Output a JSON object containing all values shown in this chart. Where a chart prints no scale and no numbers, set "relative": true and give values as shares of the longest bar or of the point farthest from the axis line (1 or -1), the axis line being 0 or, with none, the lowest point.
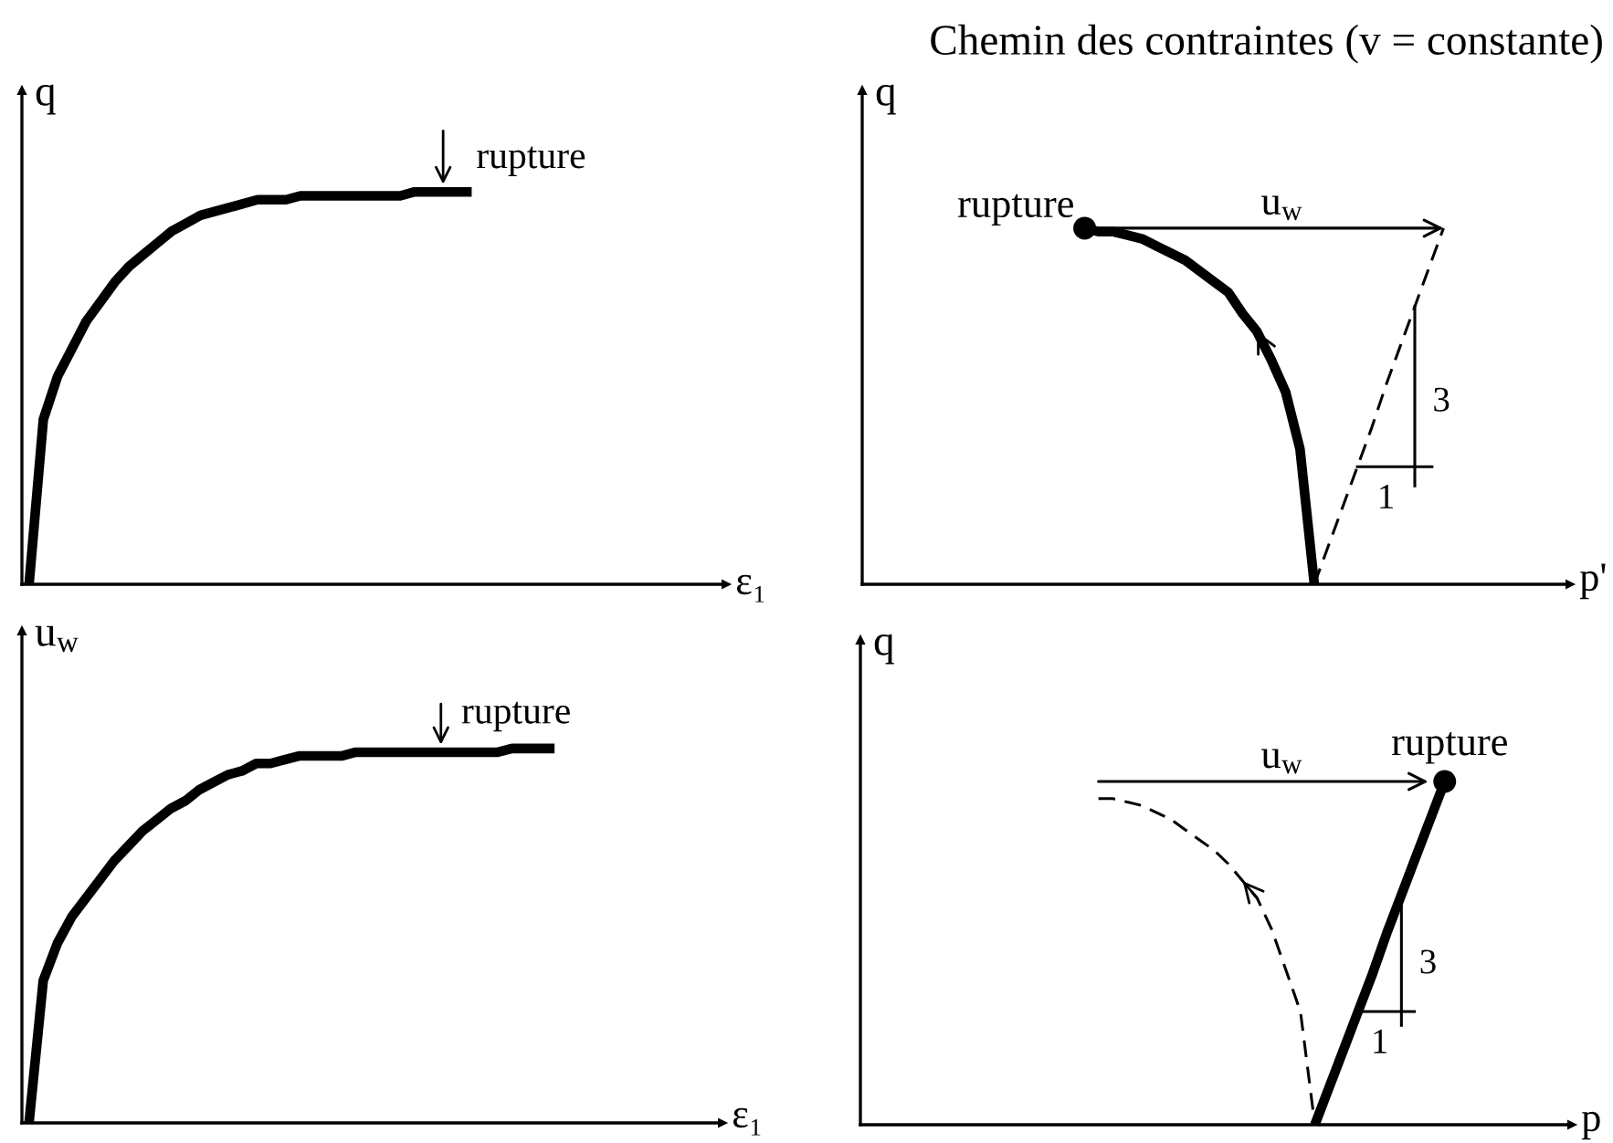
{
  "chart_data": [
    {
      "type": "line",
      "relative": true,
      "xlabel": "ε₁",
      "ylabel": "q",
      "categories": [
        null,
        null,
        null,
        null,
        null,
        null,
        null,
        null,
        null,
        null,
        null,
        null,
        null,
        null,
        null,
        null,
        null,
        null,
        null,
        null,
        null,
        null,
        null,
        null,
        null,
        null,
        null,
        null,
        null,
        null,
        null,
        null,
        null,
        null,
        null,
        null,
        null,
        null,
        null,
        null,
        null,
        null,
        null,
        null,
        null,
        null,
        null,
        null,
        null
      ],
      "series": [
        {
          "color": "#000000",
          "values": [
            0,
            0.42,
            0.53,
            0.6,
            0.67,
            0.72,
            0.77,
            0.81,
            0.84,
            0.87,
            0.9,
            0.92,
            0.94,
            0.95,
            0.96,
            0.97,
            0.98,
            0.98,
            0.98,
            0.99,
            0.99,
            0.99,
            0.99,
            0.99,
            0.99,
            0.99,
            0.99,
            1,
            1,
            1,
            1,
            1,
            null,
            null,
            null,
            null,
            null,
            null,
            null,
            null,
            null,
            null,
            null,
            null,
            null,
            null,
            null,
            null,
            null
          ]
        }
      ],
      "annotations": [
        "rupture"
      ]
    },
    {
      "type": "line",
      "relative": true,
      "title": "Chemin des contraintes (v = constante)",
      "xlabel": "p'",
      "ylabel": "q",
      "categories": [
        null,
        null,
        null,
        null,
        null,
        null,
        null,
        null,
        null,
        null,
        null,
        null,
        null,
        null,
        null,
        null,
        null,
        null,
        null,
        null,
        null,
        null,
        null,
        null,
        null,
        null,
        null,
        null,
        null,
        null,
        null,
        null,
        null,
        null,
        null,
        null,
        null,
        null,
        null,
        null,
        null,
        null,
        null,
        null,
        null,
        null,
        null,
        null,
        null
      ],
      "series": [
        {
          "color": "#000000",
          "values": [
            null,
            null,
            null,
            null,
            null,
            null,
            null,
            null,
            null,
            null,
            null,
            null,
            null,
            null,
            null,
            1,
            0.99,
            0.99,
            0.98,
            0.97,
            0.95,
            0.93,
            0.91,
            0.88,
            0.85,
            0.82,
            0.76,
            0.71,
            0.63,
            0.54,
            0.38,
            0,
            null,
            null,
            null,
            null,
            null,
            null,
            null,
            null,
            null,
            null,
            null,
            null,
            null,
            null,
            null,
            null,
            null
          ]
        },
        {
          "color": "#000000",
          "line_style": "dashed",
          "values": [
            null,
            null,
            null,
            null,
            null,
            null,
            null,
            null,
            null,
            null,
            null,
            null,
            null,
            null,
            null,
            null,
            null,
            null,
            null,
            null,
            null,
            null,
            null,
            null,
            null,
            null,
            null,
            null,
            null,
            null,
            null,
            0,
            0.11,
            0.22,
            0.33,
            0.44,
            0.56,
            0.67,
            0.78,
            0.89,
            1,
            null,
            null,
            null,
            null,
            null,
            null,
            null,
            null
          ]
        },
        {
          "name": "rupture",
          "marker": "circle",
          "color": "#000000",
          "values": [
            null,
            null,
            null,
            null,
            null,
            null,
            null,
            null,
            null,
            null,
            null,
            null,
            null,
            null,
            null,
            1,
            null,
            null,
            null,
            null,
            null,
            null,
            null,
            null,
            null,
            null,
            null,
            null,
            null,
            null,
            null,
            null,
            null,
            null,
            null,
            null,
            null,
            null,
            null,
            null,
            null,
            null,
            null,
            null,
            null,
            null,
            null,
            null,
            null
          ]
        }
      ],
      "annotations": [
        "u$_{w}$",
        "3",
        "1"
      ]
    },
    {
      "type": "line",
      "relative": true,
      "xlabel": "ε₁",
      "ylabel": "u$_{w}$",
      "categories": [
        null,
        null,
        null,
        null,
        null,
        null,
        null,
        null,
        null,
        null,
        null,
        null,
        null,
        null,
        null,
        null,
        null,
        null,
        null,
        null,
        null,
        null,
        null,
        null,
        null,
        null,
        null,
        null,
        null,
        null,
        null,
        null,
        null,
        null,
        null,
        null,
        null,
        null,
        null,
        null,
        null,
        null,
        null,
        null,
        null,
        null,
        null,
        null,
        null
      ],
      "series": [
        {
          "color": "#000000",
          "values": [
            0,
            0.38,
            0.48,
            0.55,
            0.6,
            0.65,
            0.7,
            0.74,
            0.78,
            0.81,
            0.84,
            0.86,
            0.89,
            0.91,
            0.93,
            0.94,
            0.96,
            0.96,
            0.97,
            0.98,
            0.98,
            0.98,
            0.98,
            0.99,
            0.99,
            0.99,
            0.99,
            0.99,
            0.99,
            0.99,
            0.99,
            0.99,
            0.99,
            0.99,
            1,
            1,
            1,
            1,
            null,
            null,
            null,
            null,
            null,
            null,
            null,
            null,
            null,
            null,
            null
          ]
        }
      ],
      "annotations": [
        "rupture"
      ]
    },
    {
      "type": "line",
      "relative": true,
      "xlabel": "p",
      "ylabel": "q",
      "categories": [
        null,
        null,
        null,
        null,
        null,
        null,
        null,
        null,
        null,
        null,
        null,
        null,
        null,
        null,
        null,
        null,
        null,
        null,
        null,
        null,
        null,
        null,
        null,
        null,
        null,
        null,
        null,
        null,
        null,
        null,
        null,
        null,
        null,
        null,
        null,
        null,
        null,
        null,
        null,
        null,
        null,
        null,
        null,
        null,
        null,
        null,
        null,
        null,
        null
      ],
      "series": [
        {
          "color": "#000000",
          "values": [
            null,
            null,
            null,
            null,
            null,
            null,
            null,
            null,
            null,
            null,
            null,
            null,
            null,
            null,
            null,
            null,
            null,
            null,
            null,
            null,
            null,
            null,
            null,
            null,
            null,
            null,
            null,
            null,
            null,
            null,
            null,
            0,
            0.11,
            0.22,
            0.33,
            0.44,
            0.56,
            0.67,
            0.78,
            0.89,
            1,
            null,
            null,
            null,
            null,
            null,
            null,
            null,
            null
          ]
        },
        {
          "color": "#000000",
          "line_style": "dashed",
          "values": [
            null,
            null,
            null,
            null,
            null,
            null,
            null,
            null,
            null,
            null,
            null,
            null,
            null,
            null,
            null,
            null,
            0.95,
            0.95,
            0.94,
            0.93,
            0.91,
            0.89,
            0.86,
            0.83,
            0.8,
            0.76,
            0.71,
            0.66,
            0.57,
            0.45,
            0.33,
            0,
            null,
            null,
            null,
            null,
            null,
            null,
            null,
            null,
            null,
            null,
            null,
            null,
            null,
            null,
            null,
            null,
            null
          ]
        },
        {
          "name": "rupture",
          "marker": "circle",
          "color": "#000000",
          "values": [
            null,
            null,
            null,
            null,
            null,
            null,
            null,
            null,
            null,
            null,
            null,
            null,
            null,
            null,
            null,
            null,
            null,
            null,
            null,
            null,
            null,
            null,
            null,
            null,
            null,
            null,
            null,
            null,
            null,
            null,
            null,
            null,
            null,
            null,
            null,
            null,
            null,
            null,
            null,
            null,
            1,
            null,
            null,
            null,
            null,
            null,
            null,
            null,
            null
          ]
        }
      ],
      "annotations": [
        "u$_{w}$",
        "3",
        "1"
      ]
    }
  ]
}
